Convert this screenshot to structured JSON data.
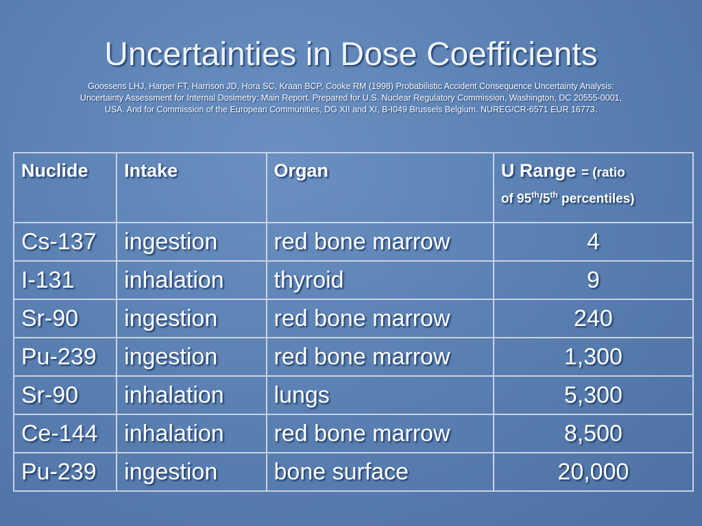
{
  "header": {
    "title": "Uncertainties in Dose Coefficients",
    "citation": [
      "Goossens LHJ, Harper FT, Harrison JD, Hora SC, Kraan BCP, Cooke RM (1998) Probabilistic Accident Consequence Uncertainty Analysis:",
      "Uncertainty Assessment for Internal Dosimetry: Main Report. Prepared for U.S. Nuclear Regulatory Commission, Washington, DC 20555-0001,",
      "USA. And for Commission of the European Communities, DG XII and XI, B-I049 Brussels Belgium. NUREG/CR-6571 EUR 16773."
    ]
  },
  "table": {
    "columns": [
      "Nuclide",
      "Intake",
      "Organ"
    ],
    "range_header": {
      "name": "U Range",
      "note_start": "= (ratio",
      "note_line2": "of 95",
      "sup1": "th",
      "mid": "/5",
      "sup2": "th",
      "note_end": " percentiles)"
    },
    "rows": [
      [
        "Cs-137",
        "ingestion",
        "red bone marrow",
        "4"
      ],
      [
        "I-131",
        "inhalation",
        "thyroid",
        "9"
      ],
      [
        "Sr-90",
        "ingestion",
        "red bone marrow",
        "240"
      ],
      [
        "Pu-239",
        "ingestion",
        "red bone marrow",
        "1,300"
      ],
      [
        "Sr-90",
        "inhalation",
        "lungs",
        "5,300"
      ],
      [
        "Ce-144",
        "inhalation",
        "red bone marrow",
        "8,500"
      ],
      [
        "Pu-239",
        "ingestion",
        "bone surface",
        "20,000"
      ]
    ]
  }
}
